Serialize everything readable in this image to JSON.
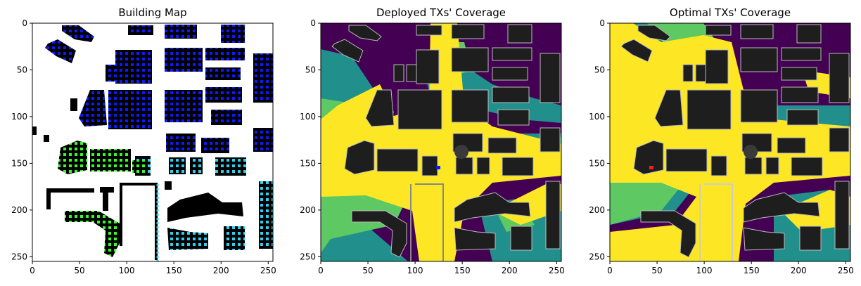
{
  "chart_data": [
    {
      "type": "heatmap",
      "title": "Building Map",
      "xlim": [
        0,
        255
      ],
      "ylim": [
        255,
        0
      ],
      "xticks": [
        0,
        50,
        100,
        150,
        200,
        250
      ],
      "yticks": [
        0,
        50,
        100,
        150,
        200,
        250
      ],
      "colors": {
        "background": "#ffffff",
        "building": "#000000",
        "dots_a": "#0b1aff",
        "dots_b": "#2ad2f0",
        "dots_c": "#33ff22"
      }
    },
    {
      "type": "heatmap",
      "title": "Deployed TXs' Coverage",
      "xlim": [
        0,
        255
      ],
      "ylim": [
        255,
        0
      ],
      "xticks": [
        0,
        50,
        100,
        150,
        200,
        250
      ],
      "yticks": [
        0,
        50,
        100,
        150,
        200,
        250
      ],
      "colors": {
        "low": "#440154",
        "mid": "#21908d",
        "midhigh": "#5ec962",
        "high": "#fde725",
        "building": "#1e1e1e",
        "tx": "#0a18ff"
      }
    },
    {
      "type": "heatmap",
      "title": "Optimal TXs' Coverage",
      "xlim": [
        0,
        255
      ],
      "ylim": [
        255,
        0
      ],
      "xticks": [
        0,
        50,
        100,
        150,
        200,
        250
      ],
      "yticks": [
        0,
        50,
        100,
        150,
        200,
        250
      ],
      "colors": {
        "low": "#440154",
        "mid": "#21908d",
        "midhigh": "#5ec962",
        "high": "#fde725",
        "building": "#1e1e1e",
        "tx": "#ff1a1a"
      }
    }
  ]
}
